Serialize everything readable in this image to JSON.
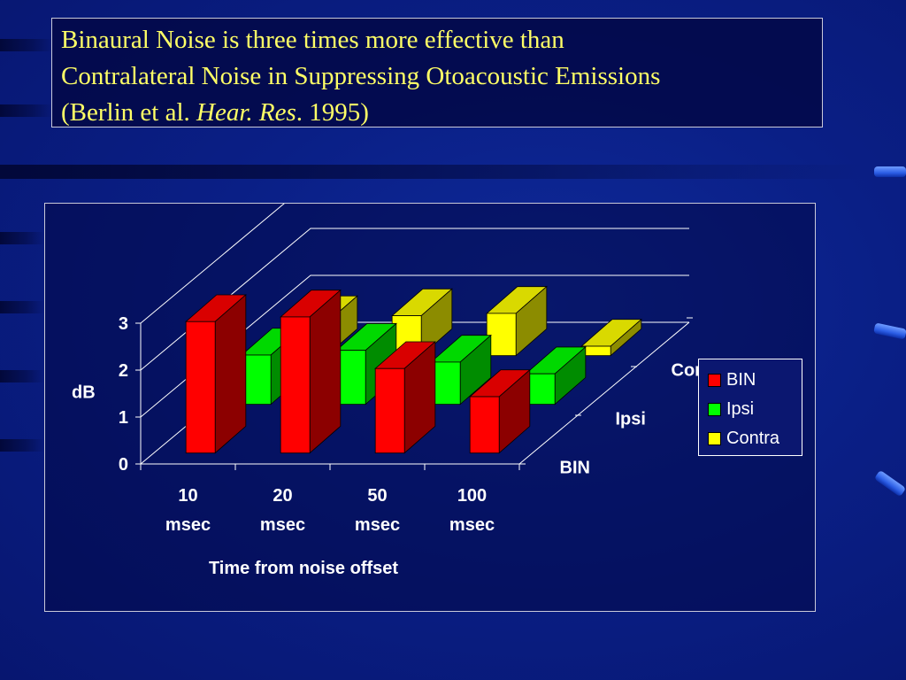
{
  "slide": {
    "title_line1": "Binaural Noise is three times more effective than",
    "title_line2": "Contralateral Noise in Suppressing Otoacoustic Emissions",
    "title_line3_prefix": "(Berlin et al. ",
    "title_line3_italic": "Hear. Res",
    "title_line3_suffix": ". 1995)"
  },
  "chart_data": {
    "type": "bar",
    "subtype": "3d-clustered",
    "ylabel": "dB",
    "xlabel": "Time from noise offset",
    "ylim": [
      0,
      3
    ],
    "y_ticks": [
      "0",
      "1",
      "2",
      "3"
    ],
    "grid": true,
    "legend_position": "right",
    "categories": [
      [
        "10",
        "msec"
      ],
      [
        "20",
        "msec"
      ],
      [
        "50",
        "msec"
      ],
      [
        "100",
        "msec"
      ]
    ],
    "series": [
      {
        "name": "BIN",
        "color": "#ff0000",
        "values": [
          2.8,
          2.9,
          1.8,
          1.2
        ]
      },
      {
        "name": "Ipsi",
        "color": "#00ff00",
        "values": [
          1.05,
          1.15,
          0.9,
          0.65
        ]
      },
      {
        "name": "Contra",
        "color": "#ffff00",
        "values": [
          0.7,
          0.85,
          0.9,
          0.2
        ]
      }
    ],
    "depth_labels": [
      "BIN",
      "Ipsi",
      "Contra"
    ]
  }
}
